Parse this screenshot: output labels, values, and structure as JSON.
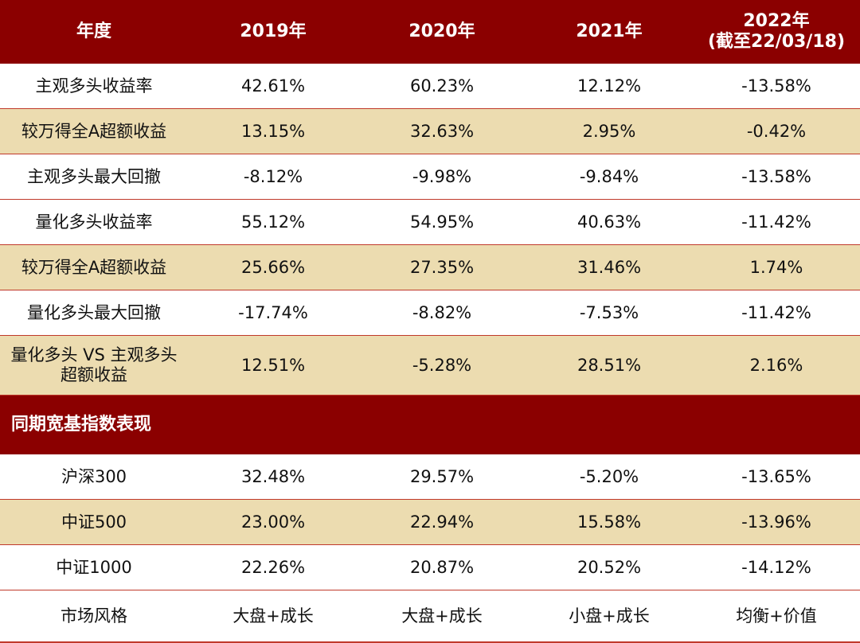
{
  "header": [
    "年度",
    "2019年",
    "2020年",
    "2021年",
    "2022年",
    "(截至22/03/18)"
  ],
  "rows": [
    {
      "label": "主观多头收益率",
      "values": [
        "42.61%",
        "60.23%",
        "12.12%",
        "-13.58%"
      ]
    },
    {
      "label": "较万得全A超额收益",
      "values": [
        "13.15%",
        "32.63%",
        "2.95%",
        "-0.42%"
      ]
    },
    {
      "label": "主观多头最大回撤",
      "values": [
        "-8.12%",
        "-9.98%",
        "-9.84%",
        "-13.58%"
      ]
    },
    {
      "label": "量化多头收益率",
      "values": [
        "55.12%",
        "54.95%",
        "40.63%",
        "-11.42%"
      ]
    },
    {
      "label": "较万得全A超额收益",
      "values": [
        "25.66%",
        "27.35%",
        "31.46%",
        "1.74%"
      ]
    },
    {
      "label": "量化多头最大回撤",
      "values": [
        "-17.74%",
        "-8.82%",
        "-7.53%",
        "-11.42%"
      ]
    },
    {
      "label": "量化多头 VS 主观多头",
      "label2": "超额收益",
      "values": [
        "12.51%",
        "-5.28%",
        "28.51%",
        "2.16%"
      ]
    }
  ],
  "section_title": "同期宽基指数表现",
  "index_rows": [
    {
      "label": "沪深300",
      "values": [
        "32.48%",
        "29.57%",
        "-5.20%",
        "-13.65%"
      ]
    },
    {
      "label": "中证500",
      "values": [
        "23.00%",
        "22.94%",
        "15.58%",
        "-13.96%"
      ]
    },
    {
      "label": "中证1000",
      "values": [
        "22.26%",
        "20.87%",
        "20.52%",
        "-14.12%"
      ]
    },
    {
      "label": "市场风格",
      "values": [
        "大盘+成长",
        "大盘+成长",
        "小盘+成长",
        "均衡+价值"
      ]
    }
  ],
  "colors": {
    "header_bg": "#8b0000",
    "beige_row": "#ecdcb0",
    "rule": "#c0392b"
  }
}
